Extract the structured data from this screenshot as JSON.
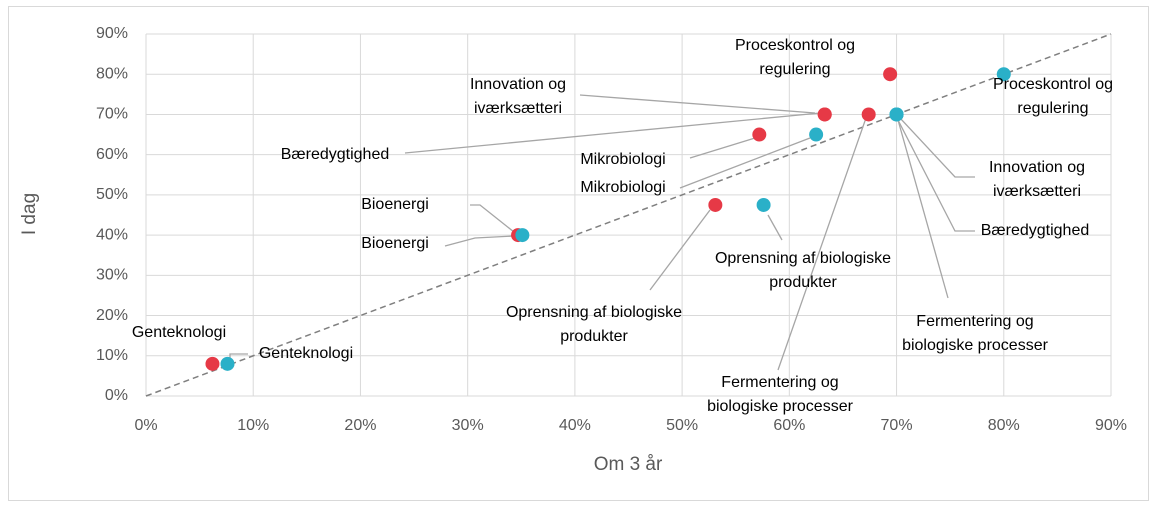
{
  "chart_data": {
    "type": "scatter",
    "x_label": "Om 3 år",
    "y_label": "I dag",
    "xlim": [
      0,
      90
    ],
    "ylim": [
      0,
      90
    ],
    "xticks": [
      {
        "value": 0,
        "label": "0%"
      },
      {
        "value": 10,
        "label": "10%"
      },
      {
        "value": 20,
        "label": "20%"
      },
      {
        "value": 30,
        "label": "30%"
      },
      {
        "value": 40,
        "label": "40%"
      },
      {
        "value": 50,
        "label": "50%"
      },
      {
        "value": 60,
        "label": "60%"
      },
      {
        "value": 70,
        "label": "70%"
      },
      {
        "value": 80,
        "label": "80%"
      },
      {
        "value": 90,
        "label": "90%"
      }
    ],
    "yticks": [
      {
        "value": 0,
        "label": "0%"
      },
      {
        "value": 10,
        "label": "10%"
      },
      {
        "value": 20,
        "label": "20%"
      },
      {
        "value": 30,
        "label": "30%"
      },
      {
        "value": 40,
        "label": "40%"
      },
      {
        "value": 50,
        "label": "50%"
      },
      {
        "value": 60,
        "label": "60%"
      },
      {
        "value": 70,
        "label": "70%"
      },
      {
        "value": 80,
        "label": "80%"
      },
      {
        "value": 90,
        "label": "90%"
      }
    ],
    "grid": true,
    "series": [
      {
        "color": "#e63946",
        "x": [
          6.2,
          34.7,
          53.1,
          57.2,
          63.3,
          63.3,
          67.4,
          69.4
        ],
        "values": [
          8,
          40,
          47.5,
          65,
          70,
          70,
          70,
          80
        ],
        "labels": [
          [
            "Genteknologi"
          ],
          [
            "Bioenergi"
          ],
          [
            "Oprensning af biologiske",
            "produkter"
          ],
          [
            "Mikrobiologi"
          ],
          [
            "Innovation og",
            "iværksætteri"
          ],
          [
            "Bæredygtighed"
          ],
          [
            "Fermentering og",
            "biologiske processer"
          ],
          [
            "Proceskontrol og",
            "regulering"
          ]
        ]
      },
      {
        "color": "#2ab0c8",
        "x": [
          7.6,
          35.1,
          57.6,
          62.5,
          70,
          70,
          70,
          80
        ],
        "values": [
          8,
          40,
          47.5,
          65,
          70,
          70,
          70,
          80
        ],
        "labels": [
          [
            "Genteknologi"
          ],
          [
            "Bioenergi"
          ],
          [
            "Oprensning af biologiske",
            "produkter"
          ],
          [
            "Mikrobiologi"
          ],
          [
            "Innovation og",
            "iværksætteri"
          ],
          [
            "Bæredygtighed"
          ],
          [
            "Fermentering og",
            "biologiske processer"
          ],
          [
            "Proceskontrol og",
            "regulering"
          ]
        ]
      }
    ]
  }
}
